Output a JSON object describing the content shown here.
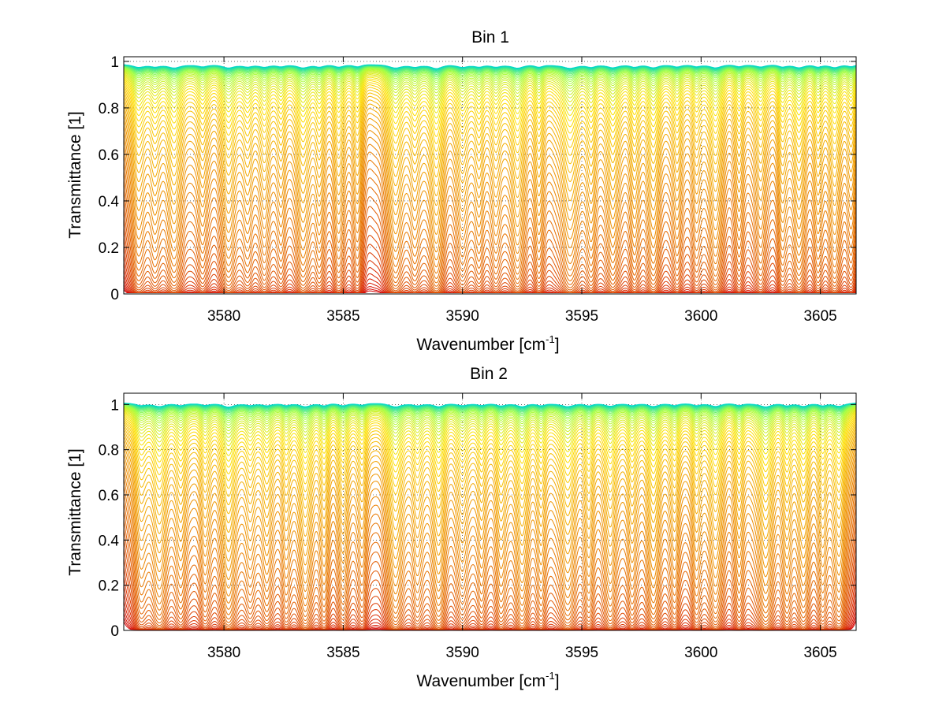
{
  "chart_data": [
    {
      "type": "line",
      "title": "Bin 1",
      "xlabel": "Wavenumber [cm",
      "xlabel_sup": "-1",
      "xlabel_tail": "]",
      "ylabel": "Transmittance [1]",
      "xlim": [
        3575.8,
        3606.5
      ],
      "ylim": [
        0,
        1.02
      ],
      "xticks": [
        3580,
        3585,
        3590,
        3595,
        3600,
        3605
      ],
      "xtick_labels": [
        "3580",
        "3585",
        "3590",
        "3595",
        "3600",
        "3605"
      ],
      "yticks": [
        0,
        0.2,
        0.4,
        0.6,
        0.8,
        1
      ],
      "ytick_labels": [
        "0",
        "0.2",
        "0.4",
        "0.6",
        "0.8",
        "1"
      ],
      "grid": true,
      "series_count": 60,
      "baseline_levels": [
        0.005,
        0.99
      ],
      "colormap": [
        "#d40000",
        "#e05500",
        "#f09a00",
        "#ffe000",
        "#a0ff40",
        "#00d8c8"
      ],
      "absorption_lines": [
        {
          "x": 3576.4,
          "depth": 0.7,
          "width": 0.3
        },
        {
          "x": 3577.1,
          "depth": 0.5,
          "width": 0.25
        },
        {
          "x": 3577.9,
          "depth": 0.85,
          "width": 0.35
        },
        {
          "x": 3579.1,
          "depth": 0.55,
          "width": 0.25
        },
        {
          "x": 3580.2,
          "depth": 0.8,
          "width": 0.33
        },
        {
          "x": 3581.0,
          "depth": 0.55,
          "width": 0.25
        },
        {
          "x": 3581.7,
          "depth": 0.6,
          "width": 0.25
        },
        {
          "x": 3582.4,
          "depth": 0.5,
          "width": 0.22
        },
        {
          "x": 3583.3,
          "depth": 0.8,
          "width": 0.3
        },
        {
          "x": 3584.0,
          "depth": 0.55,
          "width": 0.22
        },
        {
          "x": 3584.8,
          "depth": 0.6,
          "width": 0.25
        },
        {
          "x": 3585.6,
          "depth": 0.5,
          "width": 0.22
        },
        {
          "x": 3587.2,
          "depth": 0.85,
          "width": 0.32
        },
        {
          "x": 3588.0,
          "depth": 0.6,
          "width": 0.25
        },
        {
          "x": 3588.9,
          "depth": 0.95,
          "width": 0.3
        },
        {
          "x": 3590.0,
          "depth": 0.65,
          "width": 0.28
        },
        {
          "x": 3590.7,
          "depth": 0.55,
          "width": 0.22
        },
        {
          "x": 3591.4,
          "depth": 0.6,
          "width": 0.25
        },
        {
          "x": 3592.3,
          "depth": 0.85,
          "width": 0.3
        },
        {
          "x": 3593.2,
          "depth": 0.55,
          "width": 0.22
        },
        {
          "x": 3594.5,
          "depth": 0.95,
          "width": 0.4
        },
        {
          "x": 3595.4,
          "depth": 0.55,
          "width": 0.22
        },
        {
          "x": 3596.3,
          "depth": 0.8,
          "width": 0.28
        },
        {
          "x": 3597.2,
          "depth": 0.55,
          "width": 0.22
        },
        {
          "x": 3598.0,
          "depth": 0.8,
          "width": 0.3
        },
        {
          "x": 3599.0,
          "depth": 0.55,
          "width": 0.22
        },
        {
          "x": 3599.8,
          "depth": 0.5,
          "width": 0.22
        },
        {
          "x": 3600.6,
          "depth": 0.8,
          "width": 0.3
        },
        {
          "x": 3601.6,
          "depth": 0.5,
          "width": 0.22
        },
        {
          "x": 3602.5,
          "depth": 0.6,
          "width": 0.25
        },
        {
          "x": 3603.4,
          "depth": 0.55,
          "width": 0.22
        },
        {
          "x": 3604.1,
          "depth": 0.75,
          "width": 0.28
        },
        {
          "x": 3604.9,
          "depth": 0.55,
          "width": 0.22
        },
        {
          "x": 3605.6,
          "depth": 0.7,
          "width": 0.28
        },
        {
          "x": 3606.3,
          "depth": 0.5,
          "width": 0.22
        }
      ]
    },
    {
      "type": "line",
      "title": "Bin 2",
      "xlabel": "Wavenumber [cm",
      "xlabel_sup": "-1",
      "xlabel_tail": "]",
      "ylabel": "Transmittance [1]",
      "xlim": [
        3575.8,
        3606.5
      ],
      "ylim": [
        0,
        1.05
      ],
      "xticks": [
        3580,
        3585,
        3590,
        3595,
        3600,
        3605
      ],
      "xtick_labels": [
        "3580",
        "3585",
        "3590",
        "3595",
        "3600",
        "3605"
      ],
      "yticks": [
        0,
        0.2,
        0.4,
        0.6,
        0.8,
        1
      ],
      "ytick_labels": [
        "0",
        "0.2",
        "0.4",
        "0.6",
        "0.8",
        "1"
      ],
      "grid": true,
      "series_count": 60,
      "baseline_levels": [
        0.005,
        1.01
      ],
      "colormap": [
        "#d40000",
        "#e05500",
        "#f09a00",
        "#ffe000",
        "#a0ff40",
        "#00d8c8"
      ],
      "absorption_lines": [
        {
          "x": 3576.5,
          "depth": 0.55,
          "width": 0.3
        },
        {
          "x": 3577.3,
          "depth": 0.85,
          "width": 0.35
        },
        {
          "x": 3578.2,
          "depth": 0.55,
          "width": 0.25
        },
        {
          "x": 3579.2,
          "depth": 0.55,
          "width": 0.25
        },
        {
          "x": 3580.2,
          "depth": 0.95,
          "width": 0.33
        },
        {
          "x": 3581.1,
          "depth": 0.55,
          "width": 0.25
        },
        {
          "x": 3581.8,
          "depth": 0.6,
          "width": 0.25
        },
        {
          "x": 3582.6,
          "depth": 0.55,
          "width": 0.22
        },
        {
          "x": 3583.4,
          "depth": 0.85,
          "width": 0.3
        },
        {
          "x": 3584.2,
          "depth": 0.6,
          "width": 0.22
        },
        {
          "x": 3585.0,
          "depth": 0.6,
          "width": 0.25
        },
        {
          "x": 3585.8,
          "depth": 0.5,
          "width": 0.22
        },
        {
          "x": 3587.2,
          "depth": 0.95,
          "width": 0.32
        },
        {
          "x": 3588.1,
          "depth": 0.6,
          "width": 0.25
        },
        {
          "x": 3589.0,
          "depth": 0.85,
          "width": 0.3
        },
        {
          "x": 3590.0,
          "depth": 0.6,
          "width": 0.28
        },
        {
          "x": 3590.8,
          "depth": 0.55,
          "width": 0.22
        },
        {
          "x": 3591.6,
          "depth": 0.65,
          "width": 0.25
        },
        {
          "x": 3592.5,
          "depth": 0.85,
          "width": 0.3
        },
        {
          "x": 3593.3,
          "depth": 0.55,
          "width": 0.22
        },
        {
          "x": 3594.4,
          "depth": 0.9,
          "width": 0.35
        },
        {
          "x": 3595.3,
          "depth": 0.55,
          "width": 0.22
        },
        {
          "x": 3596.2,
          "depth": 0.8,
          "width": 0.28
        },
        {
          "x": 3597.1,
          "depth": 0.55,
          "width": 0.22
        },
        {
          "x": 3598.0,
          "depth": 0.85,
          "width": 0.3
        },
        {
          "x": 3598.9,
          "depth": 0.55,
          "width": 0.22
        },
        {
          "x": 3599.8,
          "depth": 0.6,
          "width": 0.22
        },
        {
          "x": 3600.6,
          "depth": 0.8,
          "width": 0.3
        },
        {
          "x": 3601.6,
          "depth": 0.55,
          "width": 0.22
        },
        {
          "x": 3602.7,
          "depth": 0.95,
          "width": 0.33
        },
        {
          "x": 3603.6,
          "depth": 0.55,
          "width": 0.22
        },
        {
          "x": 3604.3,
          "depth": 0.75,
          "width": 0.28
        },
        {
          "x": 3605.1,
          "depth": 0.6,
          "width": 0.22
        },
        {
          "x": 3605.8,
          "depth": 0.8,
          "width": 0.28
        }
      ]
    }
  ]
}
